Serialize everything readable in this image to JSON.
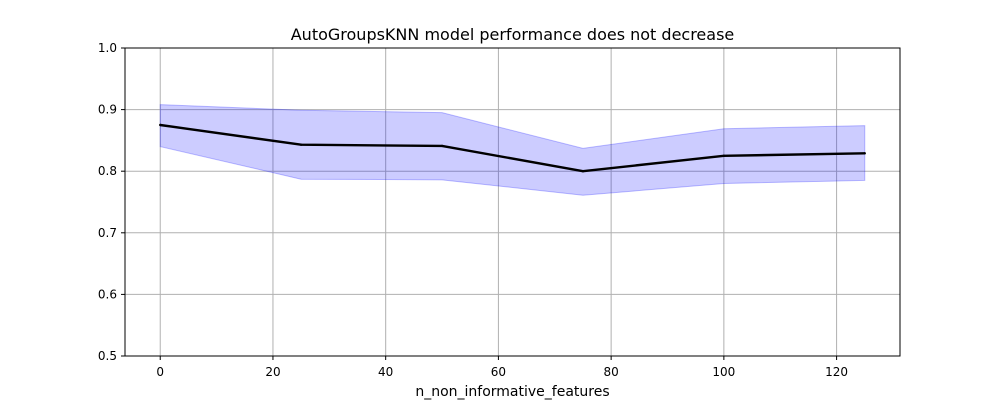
{
  "chart_data": {
    "type": "line",
    "title": "AutoGroupsKNN model performance does not decrease",
    "xlabel": "n_non_informative_features",
    "ylabel": "",
    "xlim": [
      -6.25,
      131.25
    ],
    "ylim": [
      0.5,
      1.0
    ],
    "xticks": [
      0,
      20,
      40,
      60,
      80,
      100,
      120
    ],
    "yticks": [
      0.5,
      0.6,
      0.7,
      0.8,
      0.9,
      1.0
    ],
    "xtick_labels": [
      "0",
      "20",
      "40",
      "60",
      "80",
      "100",
      "120"
    ],
    "ytick_labels": [
      "0.5",
      "0.6",
      "0.7",
      "0.8",
      "0.9",
      "1.0"
    ],
    "grid": true,
    "x": [
      0,
      25,
      50,
      75,
      100,
      125
    ],
    "series": [
      {
        "values": [
          0.875,
          0.843,
          0.841,
          0.8,
          0.825,
          0.829
        ],
        "lower": [
          0.84,
          0.787,
          0.786,
          0.761,
          0.78,
          0.785
        ],
        "upper": [
          0.908,
          0.899,
          0.895,
          0.837,
          0.869,
          0.874
        ],
        "color": "#000000",
        "band_color": "#0000ff"
      }
    ]
  }
}
